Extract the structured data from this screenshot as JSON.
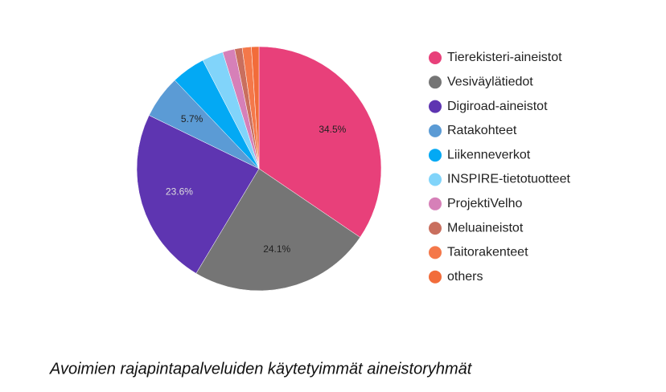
{
  "chart_data": {
    "type": "pie",
    "categories": [
      "Tierekisteri-aineistot",
      "Vesiväylätiedot",
      "Digiroad-aineistot",
      "Ratakohteet",
      "Liikenneverkot",
      "INSPIRE-tietotuotteet",
      "ProjektiVelho",
      "Meluaineistot",
      "Taitorakenteet",
      "others"
    ],
    "values": [
      34.5,
      24.1,
      23.6,
      5.7,
      4.5,
      2.8,
      1.6,
      1.0,
      1.2,
      1.0
    ],
    "value_labels": [
      "34.5%",
      "24.1%",
      "23.6%",
      "5.7%",
      null,
      null,
      null,
      null,
      null,
      null
    ],
    "colors": [
      "#e8407a",
      "#757575",
      "#5e35b1",
      "#5b9bd5",
      "#03a9f4",
      "#81d4fa",
      "#d680b8",
      "#c96f5e",
      "#f4784a",
      "#f26c3a"
    ],
    "legend": "right",
    "caption": "Avoimien rajapintapalveluiden käytetyimmät aineistoryhmät"
  }
}
